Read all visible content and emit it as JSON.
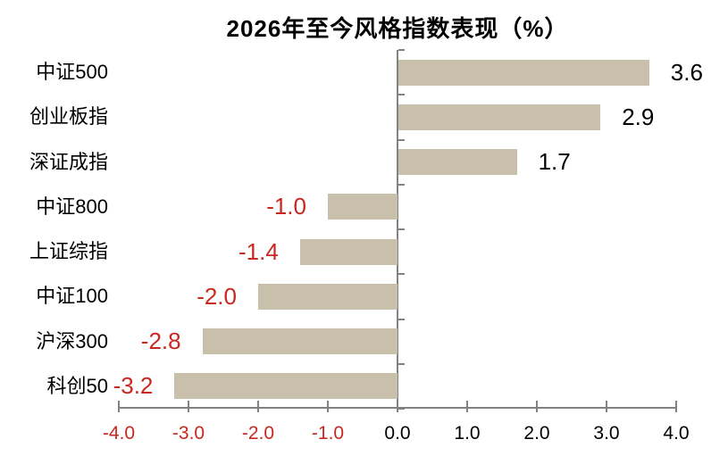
{
  "title": "2026年至今风格指数表现（%）",
  "colors": {
    "bar": "#C9C0AB",
    "axis": "#828282",
    "negative_text": "#C8281F",
    "positive_text": "#000000"
  },
  "chart_data": {
    "type": "bar",
    "orientation": "horizontal",
    "title": "2026年至今风格指数表现（%）",
    "categories": [
      "中证500",
      "创业板指",
      "深证成指",
      "中证800",
      "上证综指",
      "中证100",
      "沪深300",
      "科创50"
    ],
    "values": [
      3.6,
      2.9,
      1.7,
      -1.0,
      -1.4,
      -2.0,
      -2.8,
      -3.2
    ],
    "value_labels": [
      "3.6",
      "2.9",
      "1.7",
      "-1.0",
      "-1.4",
      "-2.0",
      "-2.8",
      "-3.2"
    ],
    "x_tick_labels": [
      "-4.0",
      "-3.0",
      "-2.0",
      "-1.0",
      "0.0",
      "1.0",
      "2.0",
      "3.0",
      "4.0"
    ],
    "x_tick_values": [
      -4,
      -3,
      -2,
      -1,
      0,
      1,
      2,
      3,
      4
    ],
    "xlim": [
      -4.0,
      4.0
    ],
    "grid": false,
    "legend": false,
    "bar_color": "#C9C0AB",
    "negative_label_color": "#C8281F",
    "positive_label_color": "#000000",
    "negative_tick_color": "#C8281F",
    "value_axis_position": "bottom",
    "category_axis_position": "zero"
  }
}
